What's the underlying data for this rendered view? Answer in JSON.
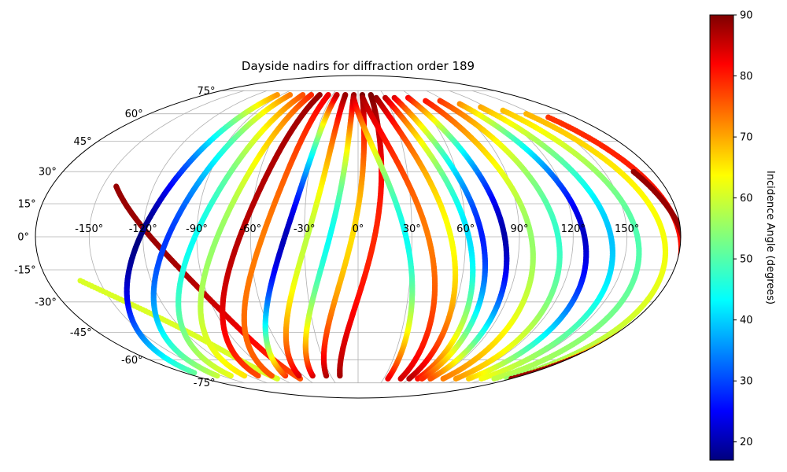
{
  "chart_data": {
    "type": "scatter",
    "projection": "mollweide",
    "title": "Dayside nadirs for diffraction order 189",
    "colorbar": {
      "label": "Incidence Angle (degrees)",
      "range": [
        17,
        90
      ],
      "ticks": [
        "20",
        "30",
        "40",
        "50",
        "60",
        "70",
        "80",
        "90"
      ],
      "colormap": "jet",
      "placement": "right"
    },
    "grid": true,
    "longitude_ticks": [
      "-150°",
      "-120°",
      "-90°",
      "-60°",
      "-30°",
      "0°",
      "30°",
      "60°",
      "90°",
      "120°",
      "150°"
    ],
    "latitude_ticks": [
      "75°",
      "60°",
      "45°",
      "30°",
      "15°",
      "0°",
      "-15°",
      "-30°",
      "-45°",
      "-60°",
      "-75°"
    ],
    "tracks": [
      {
        "direction": "south",
        "lat_start": 23,
        "lon_start": -142,
        "lon_end": -68,
        "inc_north": 90,
        "inc_south": 75,
        "color_mode": "lat_equator_low_min",
        "min_inc": 88
      },
      {
        "direction": "south",
        "lat_start": -20,
        "lon_start": -161,
        "lon_end": -95,
        "inc_north": 88,
        "inc_south": 60
      },
      {
        "direction": "north",
        "lat_start": -68,
        "lon_start": -170,
        "lon_end": -95,
        "inc_north": 70,
        "inc_south": 55,
        "min_inc": 17
      },
      {
        "direction": "north",
        "lat_start": -70,
        "lon_start": -155,
        "lon_end": -80,
        "inc_north": 72,
        "inc_south": 60,
        "min_inc": 30
      },
      {
        "direction": "north",
        "lat_start": -70,
        "lon_start": -140,
        "lon_end": -65,
        "inc_north": 75,
        "inc_south": 62,
        "min_inc": 45
      },
      {
        "direction": "north",
        "lat_start": -70,
        "lon_start": -125,
        "lon_end": -55,
        "inc_north": 78,
        "inc_south": 65,
        "min_inc": 55
      },
      {
        "direction": "north",
        "lat_start": -70,
        "lon_start": -110,
        "lon_end": -45,
        "inc_north": 88,
        "inc_south": 75,
        "min_inc": 86
      },
      {
        "direction": "north",
        "lat_start": -70,
        "lon_start": -95,
        "lon_end": -35,
        "inc_north": 82,
        "inc_south": 75,
        "min_inc": 72
      },
      {
        "direction": "north",
        "lat_start": -70,
        "lon_start": -80,
        "lon_end": -25,
        "inc_north": 85,
        "inc_south": 80,
        "min_inc": 21
      },
      {
        "direction": "north",
        "lat_start": -70,
        "lon_start": -65,
        "lon_end": -15,
        "inc_north": 88,
        "inc_south": 85,
        "min_inc": 58
      },
      {
        "direction": "north",
        "lat_start": -70,
        "lon_start": -50,
        "lon_end": -5,
        "inc_north": 88,
        "inc_south": 86,
        "min_inc": 45
      },
      {
        "direction": "north",
        "lat_start": -70,
        "lon_start": -35,
        "lon_end": 5,
        "inc_north": 90,
        "inc_south": 88,
        "min_inc": 65
      },
      {
        "direction": "north",
        "lat_start": -70,
        "lon_start": -20,
        "lon_end": 15,
        "inc_north": 90,
        "inc_south": 88,
        "min_inc": 78
      },
      {
        "direction": "south",
        "lat_start": 70,
        "lon_start": -5,
        "lon_end": 35,
        "inc_north": 88,
        "inc_south": 82,
        "min_inc": 45
      },
      {
        "direction": "south",
        "lat_start": 70,
        "lon_start": 5,
        "lon_end": 50,
        "inc_north": 88,
        "inc_south": 84,
        "min_inc": 72
      },
      {
        "direction": "south",
        "lat_start": 70,
        "lon_start": 20,
        "lon_end": 60,
        "inc_north": 90,
        "inc_south": 86,
        "min_inc": 62
      },
      {
        "direction": "south",
        "lat_start": 70,
        "lon_start": 30,
        "lon_end": 70,
        "inc_north": 88,
        "inc_south": 80,
        "min_inc": 42
      },
      {
        "direction": "south",
        "lat_start": 70,
        "lon_start": 40,
        "lon_end": 75,
        "inc_north": 86,
        "inc_south": 78,
        "min_inc": 28
      },
      {
        "direction": "south",
        "lat_start": 70,
        "lon_start": 55,
        "lon_end": 85,
        "inc_north": 84,
        "inc_south": 75,
        "min_inc": 20
      },
      {
        "direction": "south",
        "lat_start": 68,
        "lon_start": 70,
        "lon_end": 100,
        "inc_north": 82,
        "inc_south": 72,
        "min_inc": 55
      },
      {
        "direction": "south",
        "lat_start": 68,
        "lon_start": 85,
        "lon_end": 115,
        "inc_north": 80,
        "inc_south": 70,
        "min_inc": 48
      },
      {
        "direction": "south",
        "lat_start": 66,
        "lon_start": 100,
        "lon_end": 130,
        "inc_north": 78,
        "inc_south": 66,
        "min_inc": 22
      },
      {
        "direction": "south",
        "lat_start": 64,
        "lon_start": 115,
        "lon_end": 145,
        "inc_north": 75,
        "inc_south": 62,
        "min_inc": 40
      },
      {
        "direction": "south",
        "lat_start": 62,
        "lon_start": 130,
        "lon_end": 160,
        "inc_north": 72,
        "inc_south": 58,
        "min_inc": 50
      },
      {
        "direction": "south",
        "lat_start": 60,
        "lon_start": 145,
        "lon_end": 175,
        "inc_north": 70,
        "inc_south": 55,
        "min_inc": 62
      },
      {
        "direction": "south",
        "lat_start": 58,
        "lon_start": 158,
        "lon_end": 180,
        "inc_north": 76,
        "inc_south": 60,
        "min_inc": 80
      },
      {
        "direction": "south",
        "lat_start": 30,
        "lon_start": 168,
        "lon_end": 180,
        "inc_north": 90,
        "inc_south": 88,
        "min_inc": 88
      }
    ]
  }
}
